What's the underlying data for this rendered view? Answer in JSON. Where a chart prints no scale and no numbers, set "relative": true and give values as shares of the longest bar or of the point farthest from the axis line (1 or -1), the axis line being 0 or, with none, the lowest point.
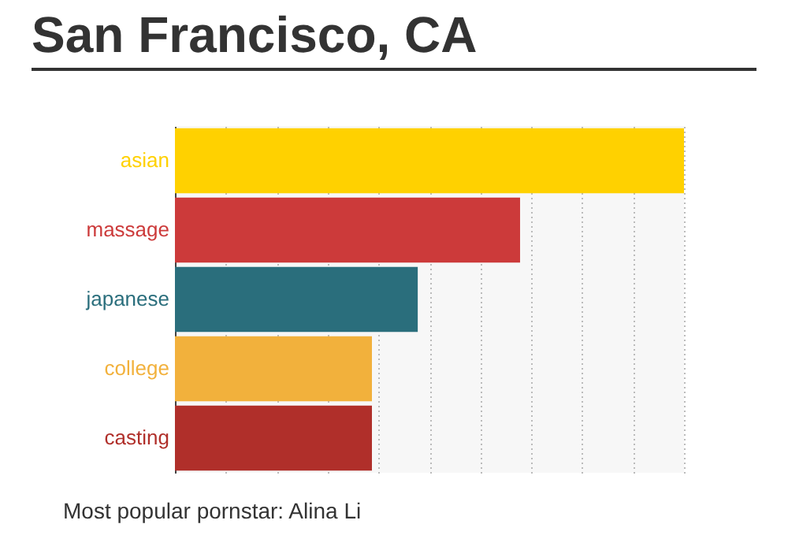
{
  "chart_data": {
    "type": "bar",
    "orientation": "horizontal",
    "relative": true,
    "title": "San Francisco, CA",
    "categories": [
      "asian",
      "massage",
      "japanese",
      "college",
      "casting"
    ],
    "values": [
      1,
      0.678,
      0.477,
      0.387,
      0.387
    ],
    "colors": [
      "#ffd100",
      "#cc3a3a",
      "#2a6e7c",
      "#f2b13c",
      "#b02f2a"
    ],
    "grid": "x",
    "annotations": [
      "Most popular pornstar: Alina Li"
    ]
  }
}
